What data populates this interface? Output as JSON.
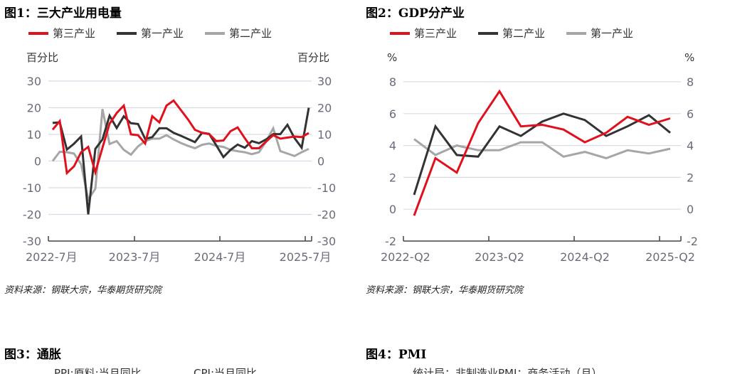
{
  "colors": {
    "red": "#e0111d",
    "black": "#333333",
    "gray": "#a6a6a6"
  },
  "chart_data": [
    {
      "type": "line",
      "title": "图1：三大产业用电量",
      "ylabel_left": "百分比",
      "ylabel_right": "百分比",
      "ylim": [
        -30,
        30
      ],
      "yticks": [
        "30",
        "20",
        "10",
        "0",
        "-10",
        "-20",
        "-30"
      ],
      "xtick_labels": [
        "2022-7月",
        "2023-7月",
        "2024-7月",
        "2025-7月"
      ],
      "x_start": "2022-7",
      "x_end": "2025-7",
      "grid": true,
      "legend": "top-left",
      "source": "资料来源：钢联大宗，华泰期货研究院",
      "series": [
        {
          "name": "第三产业",
          "color": "red",
          "values": [
            11.8,
            15,
            -4.5,
            -2,
            3.3,
            5.3,
            -4.2,
            5,
            14,
            18,
            20.8,
            10,
            9.7,
            6.6,
            16.8,
            14.5,
            20.8,
            22.7,
            19.2,
            15.7,
            11.7,
            10.6,
            10.1,
            7.5,
            7.7,
            11.2,
            12.6,
            8.6,
            4.8,
            4.8,
            7.3,
            9.7,
            8.4,
            8.8,
            9.2,
            9.0,
            10.5
          ]
        },
        {
          "name": "第一产业",
          "color": "black",
          "values": [
            14.3,
            14.5,
            4.3,
            6.5,
            9.2,
            -20,
            4.6,
            8.1,
            17,
            12.4,
            16.8,
            14.2,
            13.9,
            8.3,
            9,
            12.3,
            12.3,
            10.6,
            9.5,
            8.3,
            7.1,
            10.6,
            10.2,
            5.9,
            1.5,
            4.2,
            6.2,
            5,
            7.5,
            6.7,
            8.1,
            10.1,
            10.1,
            13.6,
            8.6,
            5,
            20
          ]
        },
        {
          "name": "第二产业",
          "color": "gray",
          "values": [
            0,
            3.5,
            3.3,
            2.8,
            -1.2,
            -14.4,
            -10.4,
            19.5,
            6.4,
            7.5,
            4.2,
            2.4,
            5.5,
            7.5,
            8.4,
            8.4,
            9.7,
            8.1,
            6.8,
            5.7,
            4.8,
            6.1,
            6.6,
            5.7,
            5.3,
            4.2,
            3.7,
            3.3,
            2.6,
            3.3,
            7.3,
            12.3,
            3.7,
            2.8,
            1.9,
            3.3,
            4.6
          ]
        }
      ]
    },
    {
      "type": "line",
      "title": "图2：GDP分产业",
      "ylabel_left": "%",
      "ylabel_right": "%",
      "ylim": [
        -2,
        8
      ],
      "yticks": [
        "8",
        "6",
        "4",
        "2",
        "0",
        "-2"
      ],
      "xtick_labels": [
        "2022-Q2",
        "2023-Q2",
        "2024-Q2",
        "2025-Q2"
      ],
      "x": [
        "2022-Q2",
        "2022-Q3",
        "2022-Q4",
        "2023-Q1",
        "2023-Q2",
        "2023-Q3",
        "2023-Q4",
        "2024-Q1",
        "2024-Q2",
        "2024-Q3",
        "2024-Q4",
        "2025-Q1",
        "2025-Q2"
      ],
      "grid": true,
      "legend": "top-left",
      "source": "资料来源：钢联大宗，华泰期货研究院",
      "series": [
        {
          "name": "第三产业",
          "color": "red",
          "values": [
            -0.4,
            3.2,
            2.3,
            5.4,
            7.4,
            5.2,
            5.3,
            5.0,
            4.2,
            4.8,
            5.8,
            5.3,
            5.7
          ]
        },
        {
          "name": "第二产业",
          "color": "black",
          "values": [
            0.9,
            5.2,
            3.4,
            3.3,
            5.2,
            4.6,
            5.5,
            6.0,
            5.6,
            4.6,
            5.2,
            5.9,
            4.8
          ]
        },
        {
          "name": "第一产业",
          "color": "gray",
          "values": [
            4.4,
            3.4,
            4.0,
            3.7,
            3.7,
            4.2,
            4.2,
            3.3,
            3.6,
            3.2,
            3.7,
            3.5,
            3.8
          ]
        }
      ]
    }
  ],
  "fig3": {
    "title": "图3：通胀",
    "legend": [
      "PPI:原料:当月同比",
      "CPI:当月同比"
    ]
  },
  "fig4": {
    "title": "图4：PMI",
    "legend": [
      "统计局：非制造业PMI：商务活动（月）"
    ]
  }
}
